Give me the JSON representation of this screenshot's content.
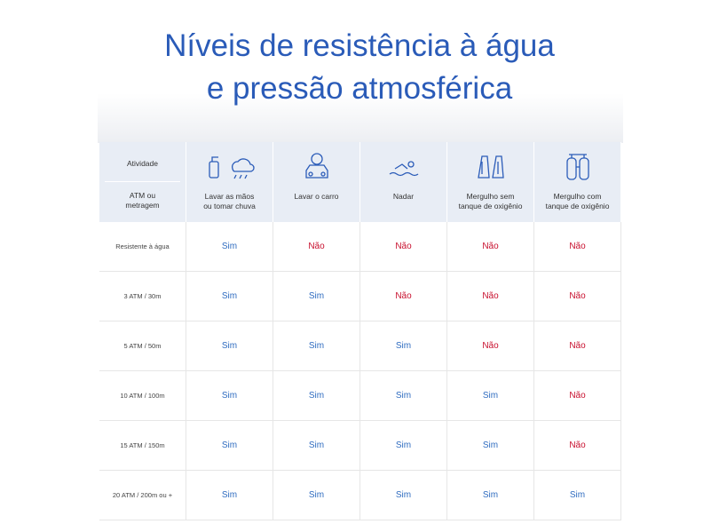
{
  "title": {
    "lines": [
      "Níveis de resistência à água",
      "e pressão atmosférica"
    ]
  },
  "table": {
    "corner": {
      "top": "Atividade",
      "bottom": [
        "ATM ou",
        "metragem"
      ]
    },
    "columns": [
      {
        "lines": [
          "Lavar as mãos",
          "ou tomar chuva"
        ]
      },
      {
        "lines": [
          "Lavar o carro"
        ]
      },
      {
        "lines": [
          "Nadar"
        ]
      },
      {
        "lines": [
          "Mergulho sem",
          "tanque de oxigênio"
        ]
      },
      {
        "lines": [
          "Mergulho com",
          "tanque de oxigênio"
        ]
      }
    ],
    "rows": [
      {
        "label": "Resistente à água",
        "cells": [
          "Sim",
          "Não",
          "Não",
          "Não",
          "Não"
        ]
      },
      {
        "label": "3 ATM / 30m",
        "cells": [
          "Sim",
          "Sim",
          "Não",
          "Não",
          "Não"
        ]
      },
      {
        "label": "5 ATM / 50m",
        "cells": [
          "Sim",
          "Sim",
          "Sim",
          "Não",
          "Não"
        ]
      },
      {
        "label": "10 ATM / 100m",
        "cells": [
          "Sim",
          "Sim",
          "Sim",
          "Sim",
          "Não"
        ]
      },
      {
        "label": "15 ATM / 150m",
        "cells": [
          "Sim",
          "Sim",
          "Sim",
          "Sim",
          "Não"
        ]
      },
      {
        "label": "20 ATM / 200m ou +",
        "cells": [
          "Sim",
          "Sim",
          "Sim",
          "Sim",
          "Sim"
        ]
      }
    ],
    "cell_colors": {
      "Sim": "#2f6cc0",
      "Não": "#c8102e"
    }
  }
}
